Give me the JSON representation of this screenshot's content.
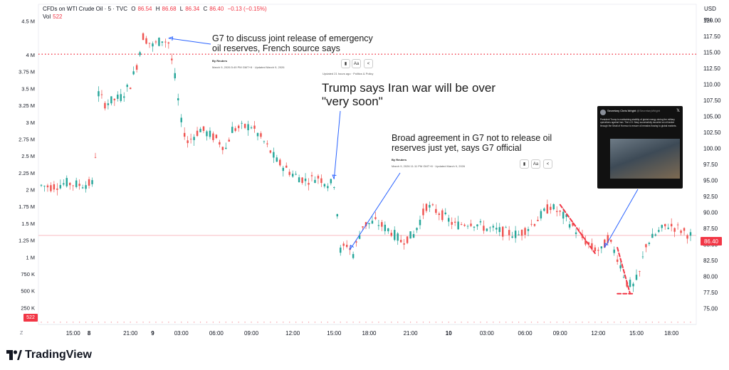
{
  "chart_data": {
    "type": "candlestick",
    "header": {
      "symbol": "CFDs on WTI Crude Oil · 5 · TVC",
      "o_label": "O",
      "o": "86.54",
      "h_label": "H",
      "h": "86.68",
      "l_label": "L",
      "l": "86.34",
      "c_label": "C",
      "c": "86.40",
      "change": "−0.13 (−0.15%)",
      "vol_label": "Vol",
      "vol": "522"
    },
    "currency": "USD",
    "unit": "BLL",
    "price_ticks": [
      "120.00",
      "117.50",
      "115.00",
      "112.50",
      "110.00",
      "107.50",
      "105.00",
      "102.50",
      "100.00",
      "97.50",
      "95.00",
      "92.50",
      "90.00",
      "87.50",
      "85.00",
      "82.50",
      "80.00",
      "77.50",
      "75.00"
    ],
    "price_tick_values": [
      120,
      117.5,
      115,
      112.5,
      110,
      107.5,
      105,
      102.5,
      100,
      97.5,
      95,
      92.5,
      90,
      87.5,
      85,
      82.5,
      80,
      77.5,
      75
    ],
    "price_range": [
      72.5,
      122.5
    ],
    "volume_ticks": [
      "4.5 M",
      "4 M",
      "3.75 M",
      "3.5 M",
      "3.25 M",
      "3 M",
      "2.75 M",
      "2.5 M",
      "2.25 M",
      "2 M",
      "1.75 M",
      "1.5 M",
      "1.25 M",
      "1 M",
      "750 K",
      "500 K",
      "250 K"
    ],
    "volume_tick_values": [
      4.5,
      4,
      3.75,
      3.5,
      3.25,
      3,
      2.75,
      2.5,
      2.25,
      2,
      1.75,
      1.5,
      1.25,
      1,
      0.75,
      0.5,
      0.25
    ],
    "volume_range_millions": [
      0,
      4.75
    ],
    "x_ticks": [
      "15:00",
      "8",
      "21:00",
      "9",
      "03:00",
      "06:00",
      "09:00",
      "12:00",
      "15:00",
      "18:00",
      "21:00",
      "10",
      "03:00",
      "06:00",
      "09:00",
      "12:00",
      "15:00",
      "18:00"
    ],
    "x_tick_index": [
      10,
      15,
      28,
      35,
      44,
      55,
      66,
      79,
      92,
      103,
      116,
      128,
      140,
      152,
      163,
      175,
      187,
      198
    ],
    "x_bold": [
      "8",
      "9",
      "10"
    ],
    "n_bars": 205,
    "price_path": [
      {
        "i": 0,
        "v": 94.2
      },
      {
        "i": 3,
        "v": 94.0
      },
      {
        "i": 8,
        "v": 94.6
      },
      {
        "i": 12,
        "v": 94.3
      },
      {
        "i": 16,
        "v": 94.5
      },
      {
        "i": 17,
        "v": 99.0
      },
      {
        "i": 18,
        "v": 108.5
      },
      {
        "i": 20,
        "v": 107.0
      },
      {
        "i": 25,
        "v": 108.0
      },
      {
        "i": 28,
        "v": 110.0
      },
      {
        "i": 30,
        "v": 113.0
      },
      {
        "i": 32,
        "v": 117.5
      },
      {
        "i": 35,
        "v": 116.0
      },
      {
        "i": 38,
        "v": 117.0
      },
      {
        "i": 40,
        "v": 116.5
      },
      {
        "i": 42,
        "v": 111.0
      },
      {
        "i": 44,
        "v": 104.0
      },
      {
        "i": 46,
        "v": 101.0
      },
      {
        "i": 50,
        "v": 103.0
      },
      {
        "i": 55,
        "v": 101.5
      },
      {
        "i": 58,
        "v": 100.0
      },
      {
        "i": 60,
        "v": 103.0
      },
      {
        "i": 66,
        "v": 103.5
      },
      {
        "i": 70,
        "v": 101.0
      },
      {
        "i": 74,
        "v": 98.0
      },
      {
        "i": 79,
        "v": 96.0
      },
      {
        "i": 83,
        "v": 95.0
      },
      {
        "i": 87,
        "v": 95.5
      },
      {
        "i": 90,
        "v": 94.5
      },
      {
        "i": 92,
        "v": 94.5
      },
      {
        "i": 93,
        "v": 90.0
      },
      {
        "i": 94,
        "v": 84.0
      },
      {
        "i": 96,
        "v": 85.0
      },
      {
        "i": 98,
        "v": 83.5
      },
      {
        "i": 101,
        "v": 88.0
      },
      {
        "i": 105,
        "v": 88.5
      },
      {
        "i": 110,
        "v": 87.0
      },
      {
        "i": 113,
        "v": 85.5
      },
      {
        "i": 117,
        "v": 86.5
      },
      {
        "i": 121,
        "v": 91.0
      },
      {
        "i": 125,
        "v": 90.0
      },
      {
        "i": 130,
        "v": 88.0
      },
      {
        "i": 135,
        "v": 88.5
      },
      {
        "i": 140,
        "v": 87.5
      },
      {
        "i": 145,
        "v": 87.0
      },
      {
        "i": 150,
        "v": 86.5
      },
      {
        "i": 155,
        "v": 88.5
      },
      {
        "i": 160,
        "v": 91.0
      },
      {
        "i": 165,
        "v": 89.0
      },
      {
        "i": 170,
        "v": 86.0
      },
      {
        "i": 173,
        "v": 84.5
      },
      {
        "i": 176,
        "v": 84.0
      },
      {
        "i": 178,
        "v": 86.0
      },
      {
        "i": 181,
        "v": 83.0
      },
      {
        "i": 184,
        "v": 79.0
      },
      {
        "i": 186,
        "v": 78.5
      },
      {
        "i": 188,
        "v": 80.5
      },
      {
        "i": 190,
        "v": 85.0
      },
      {
        "i": 194,
        "v": 87.0
      },
      {
        "i": 197,
        "v": 88.0
      },
      {
        "i": 200,
        "v": 87.5
      },
      {
        "i": 204,
        "v": 86.4
      }
    ],
    "dotted_level": 114.7,
    "last_price": "86.40",
    "last_price_value": 86.4,
    "last_volume": "522",
    "colors": {
      "up": "#26a69a",
      "down": "#ef5350",
      "level_line": "#f23645",
      "annotation_arrow": "#2962ff",
      "dashed_trend": "#f23645",
      "price_tag": "#f23645",
      "axis_text": "#787b86",
      "grid": "#f0f3fa"
    }
  },
  "annotations": [
    {
      "headline": "G7 to discuss joint release of emergency oil reserves, French source says",
      "line1": "G7 to discuss joint release of emergency",
      "line2": "oil reserves, French source says",
      "byline": "By Reuters",
      "dateline": "March 9, 2026 5:49 PM GMT+8 · Updated March 9, 2026",
      "tagline": "Updated 21 hours ago · Politics & Policy"
    },
    {
      "line1": "Trump says Iran war will be over",
      "line2": "\"very soon\""
    },
    {
      "line1": "Broad agreement in G7 not to release oil",
      "line2": "reserves just yet, says G7 official",
      "byline": "By Reuters",
      "dateline": "March 9, 2026 11:11 PM GMT+8 · Updated March 9, 2026"
    }
  ],
  "tweet": {
    "author": "Secretary Chris Wright",
    "handle": "@SecretaryWright",
    "text": "President Trump is maintaining stability of global energy during the military operations against Iran. The U.S. Navy successfully escorted an oil tanker through the Strait of Hormuz to ensure oil remains flowing to global markets."
  },
  "buttons": {
    "font_size": "Aa"
  },
  "corner_left": "Z",
  "brand": "TradingView"
}
